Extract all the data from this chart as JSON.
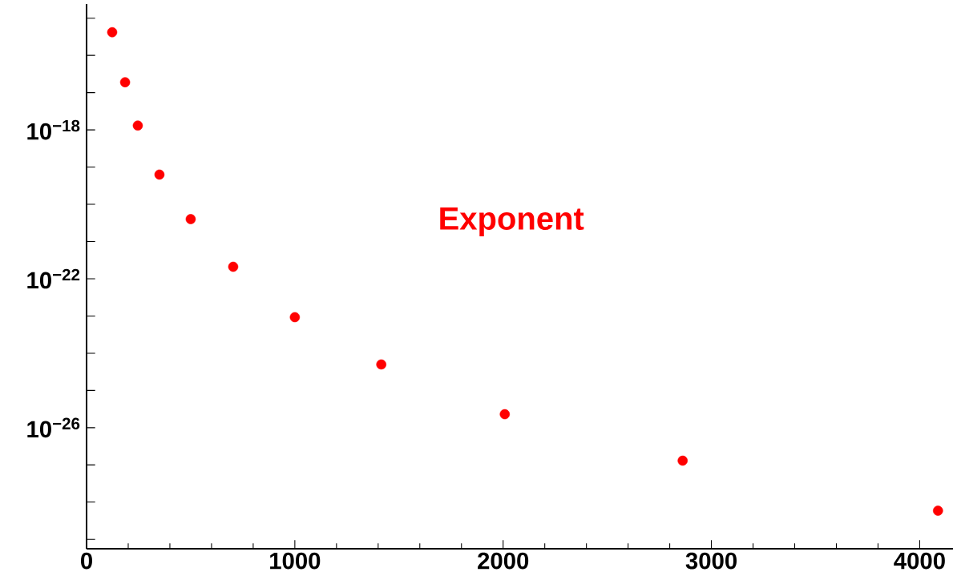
{
  "chart_data": {
    "type": "scatter",
    "log": "y",
    "marker": "circle",
    "grid": false,
    "xlim": [
      0,
      4160
    ],
    "ylim": [
      5.6e-30,
      2.4e-15
    ],
    "xticks": [
      0,
      1000,
      2000,
      3000,
      4000
    ],
    "yticks": [
      {
        "value": 1e-15,
        "label": null
      },
      {
        "value": 1e-16,
        "label": null
      },
      {
        "value": 1e-17,
        "label": null
      },
      {
        "value": 1e-18,
        "label": "10$^{−18}$"
      },
      {
        "value": 1e-19,
        "label": null
      },
      {
        "value": 1e-20,
        "label": null
      },
      {
        "value": 1e-21,
        "label": null
      },
      {
        "value": 1e-22,
        "label": "10$^{−22}$"
      },
      {
        "value": 1e-23,
        "label": null
      },
      {
        "value": 1e-24,
        "label": null
      },
      {
        "value": 1e-25,
        "label": null
      },
      {
        "value": 1e-26,
        "label": "10$^{−26}$"
      },
      {
        "value": 1e-27,
        "label": null
      },
      {
        "value": 1e-28,
        "label": null
      },
      {
        "value": 1e-29,
        "label": null
      }
    ],
    "series": [
      {
        "name": "Exponent",
        "color": "#ff0000",
        "x": [
          123,
          185,
          246,
          350,
          500,
          704,
          1000,
          1415,
          2008,
          2862,
          4088
        ],
        "values": [
          4.2e-16,
          1.9e-17,
          1.3e-18,
          6.3e-20,
          4e-21,
          2.1e-22,
          9.3e-24,
          5e-25,
          2.3e-26,
          1.3e-27,
          5.9e-29
        ]
      }
    ]
  }
}
